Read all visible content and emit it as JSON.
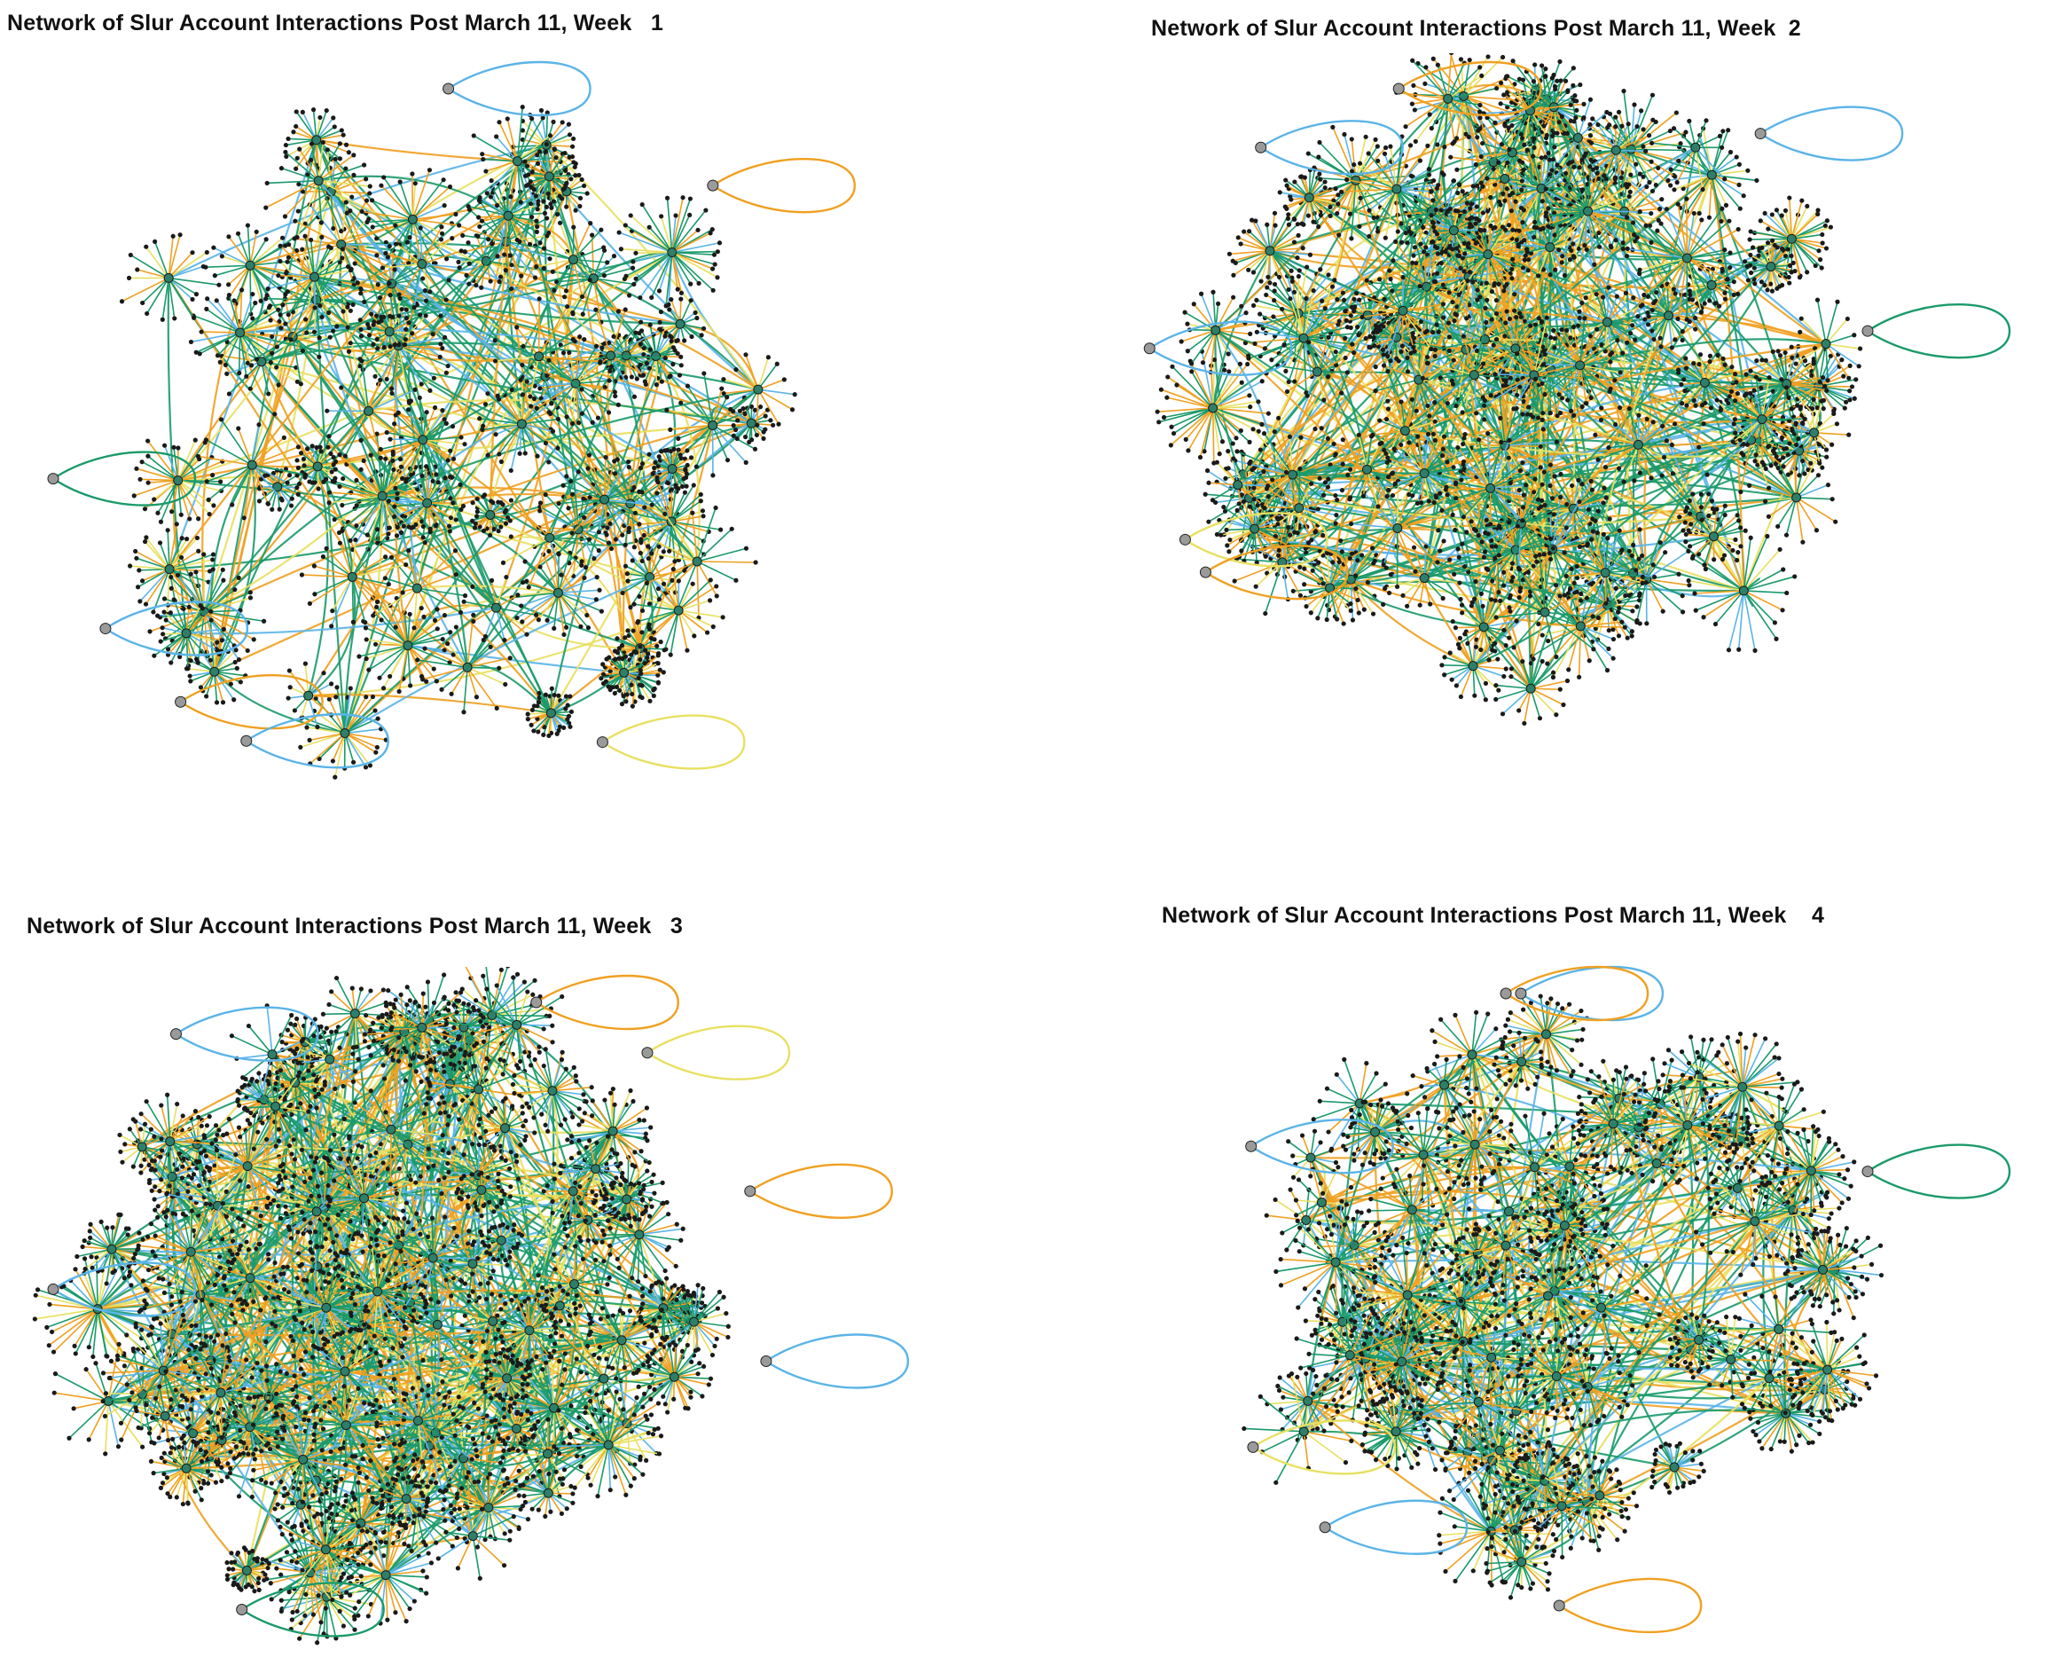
{
  "figure": {
    "panels": [
      {
        "title": "Network of Slur Account Interactions Post March 11, Week   1",
        "density": 0.45
      },
      {
        "title": "Network of Slur Account Interactions Post March 11, Week  2",
        "density": 0.9
      },
      {
        "title": "Network of Slur Account Interactions Post March 11, Week   3",
        "density": 1.0
      },
      {
        "title": "Network of Slur Account Interactions Post March 11, Week    4",
        "density": 0.6
      }
    ],
    "edge_colors": {
      "green": "#1a9a6a",
      "orange": "#f0a020",
      "yellow": "#e8e060",
      "blue": "#5ab4e8"
    },
    "node_color": "#1a1a1a",
    "hub_fill": "#2e7f6a"
  }
}
